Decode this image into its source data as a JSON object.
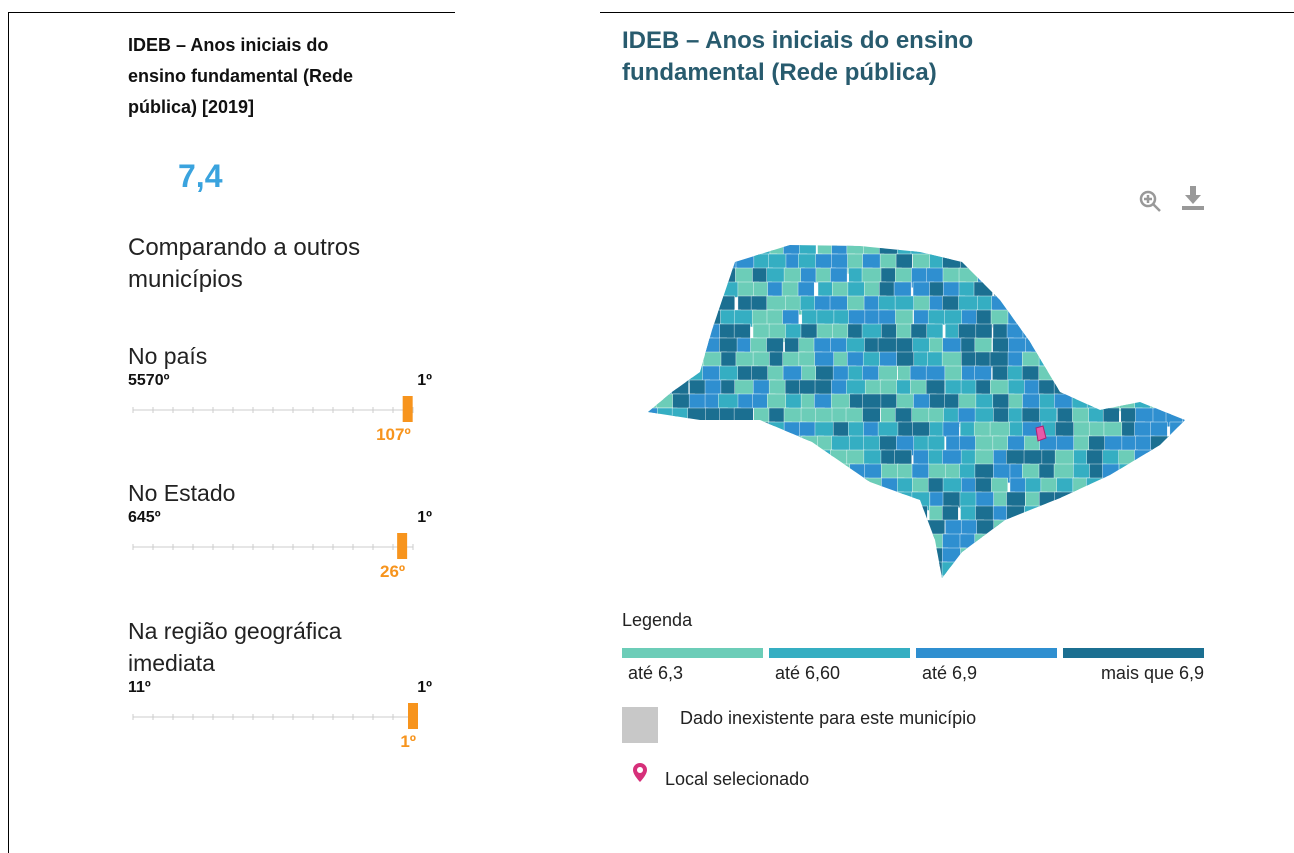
{
  "summary": {
    "title": "IDEB – Anos iniciais do ensino fundamental (Rede pública) [2019]",
    "value": "7,4"
  },
  "comparison": {
    "heading": "Comparando a outros municípios",
    "rankings": [
      {
        "label": "No país",
        "min": {
          "value": 5570,
          "label": "5570º"
        },
        "max": {
          "value": 1,
          "label": "1º"
        },
        "rank": {
          "value": 107,
          "label": "107º"
        }
      },
      {
        "label": "No Estado",
        "min": {
          "value": 645,
          "label": "645º"
        },
        "max": {
          "value": 1,
          "label": "1º"
        },
        "rank": {
          "value": 26,
          "label": "26º"
        }
      },
      {
        "label": "Na região geográfica imediata",
        "min": {
          "value": 11,
          "label": "11º"
        },
        "max": {
          "value": 1,
          "label": "1º"
        },
        "rank": {
          "value": 1,
          "label": "1º"
        }
      }
    ]
  },
  "map": {
    "title": "IDEB – Anos iniciais do ensino fundamental (Rede pública)",
    "legend": {
      "title": "Legenda",
      "classes": [
        {
          "label": "até 6,3",
          "color": "#6ccdb8"
        },
        {
          "label": "até 6,60",
          "color": "#35aec2"
        },
        {
          "label": "até 6,9",
          "color": "#2f8fd0"
        },
        {
          "label": "mais que 6,9",
          "color": "#1b6f91"
        }
      ],
      "missing": {
        "label": "Dado inexistente para este município",
        "color": "#c8c8c8"
      },
      "selected": {
        "label": "Local selecionado",
        "color": "#d6307a"
      }
    }
  }
}
